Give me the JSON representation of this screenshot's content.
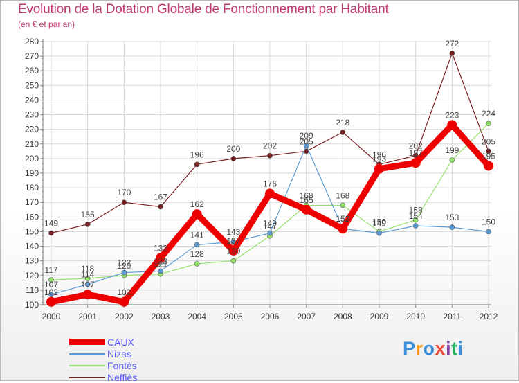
{
  "header": {
    "title": "Evolution de la Dotation Globale de Fonctionnement par Habitant",
    "subtitle": "(en € et par an)"
  },
  "colors": {
    "caux": "#ee0000",
    "nizas": "#5a9bd5",
    "fontes": "#93e16b",
    "neffies": "#7a1f22",
    "title": "#c0386f",
    "legend_text": "#5a5aff"
  },
  "logo": {
    "letters": [
      "P",
      "r",
      "o",
      "x",
      "i",
      "t",
      "i"
    ],
    "colors": [
      "#3a8fd8",
      "#f39c12",
      "#3a8fd8",
      "#e74c3c",
      "#8e44ad",
      "#27ae60",
      "#3a8fd8"
    ]
  },
  "chart_data": {
    "type": "line",
    "title": "Evolution de la Dotation Globale de Fonctionnement par Habitant",
    "subtitle": "(en € et par an)",
    "xlabel": "",
    "ylabel": "",
    "x": [
      "2000",
      "2001",
      "2002",
      "2003",
      "2004",
      "2005",
      "2006",
      "2007",
      "2008",
      "2009",
      "2010",
      "2011",
      "2012"
    ],
    "ylim": [
      100,
      280
    ],
    "yticks": [
      100,
      110,
      120,
      130,
      140,
      150,
      160,
      170,
      180,
      190,
      200,
      210,
      220,
      230,
      240,
      250,
      260,
      270,
      280
    ],
    "grid": true,
    "legend_position": "bottom-left",
    "series": [
      {
        "name": "Neffiès",
        "key": "neffies",
        "values": [
          149,
          155,
          170,
          167,
          196,
          200,
          202,
          205,
          218,
          196,
          202,
          272,
          205
        ],
        "labels": [
          "149",
          "155",
          "170",
          "167",
          "196",
          "200",
          "202",
          "205",
          "218",
          "196",
          "202",
          "272",
          "205"
        ]
      },
      {
        "name": "Fontès",
        "key": "fontes",
        "values": [
          117,
          118,
          120,
          121,
          128,
          130,
          147,
          168,
          168,
          150,
          158,
          199,
          224
        ],
        "labels": [
          "117",
          "118",
          "120",
          "121",
          "128",
          "130",
          "147",
          "168",
          "168",
          "150",
          "158",
          "199",
          "224"
        ]
      },
      {
        "name": "Nizas",
        "key": "nizas",
        "values": [
          107,
          114,
          122,
          123,
          141,
          143,
          149,
          209,
          152,
          149,
          154,
          153,
          150
        ],
        "labels": [
          "107",
          "114",
          "122",
          "123",
          "141",
          "143",
          "149",
          "209",
          "152",
          "149",
          "154",
          "153",
          "150"
        ]
      },
      {
        "name": "CAUX",
        "key": "caux",
        "values": [
          102,
          107,
          102,
          132,
          162,
          137,
          176,
          165,
          152,
          193,
          197,
          223,
          195
        ],
        "labels": [
          "102",
          "107",
          "102",
          "132",
          "162",
          "137",
          "176",
          "165",
          "152",
          "193",
          "197",
          "223",
          "195"
        ]
      }
    ],
    "legend": [
      "CAUX",
      "Nizas",
      "Fontès",
      "Neffiès"
    ]
  }
}
